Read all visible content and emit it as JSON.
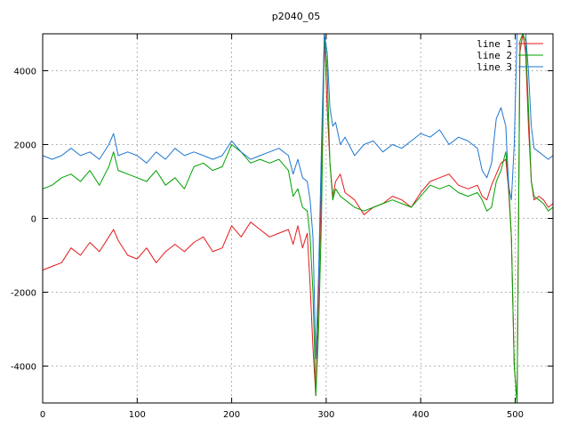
{
  "chart_data": {
    "type": "line",
    "title": "p2040_05",
    "xlabel": "",
    "ylabel": "",
    "xlim": [
      0,
      540
    ],
    "ylim": [
      -5000,
      5000
    ],
    "x_ticks": [
      0,
      100,
      200,
      300,
      400,
      500
    ],
    "y_ticks": [
      -4000,
      -2000,
      0,
      2000,
      4000
    ],
    "grid": true,
    "legend_position": "top-right",
    "x": [
      0,
      10,
      20,
      30,
      40,
      50,
      60,
      70,
      75,
      80,
      90,
      100,
      110,
      120,
      130,
      140,
      150,
      160,
      170,
      180,
      190,
      200,
      210,
      220,
      230,
      240,
      250,
      260,
      265,
      270,
      275,
      280,
      283,
      286,
      289,
      292,
      295,
      298,
      301,
      304,
      307,
      310,
      315,
      320,
      330,
      340,
      350,
      360,
      370,
      380,
      390,
      400,
      410,
      420,
      430,
      440,
      450,
      460,
      465,
      470,
      475,
      480,
      485,
      490,
      493,
      496,
      499,
      502,
      505,
      508,
      511,
      514,
      517,
      520,
      525,
      530,
      535,
      540
    ],
    "series": [
      {
        "name": "line 1",
        "color": "#e41a1c",
        "values": [
          -1400,
          -1300,
          -1200,
          -800,
          -1000,
          -650,
          -900,
          -500,
          -300,
          -600,
          -1000,
          -1100,
          -800,
          -1200,
          -900,
          -700,
          -900,
          -650,
          -500,
          -900,
          -800,
          -200,
          -500,
          -100,
          -300,
          -500,
          -400,
          -300,
          -700,
          -200,
          -800,
          -400,
          -1800,
          -3500,
          -4800,
          -2000,
          1000,
          5000,
          3000,
          1500,
          600,
          1000,
          1200,
          700,
          500,
          100,
          300,
          400,
          600,
          500,
          300,
          700,
          1000,
          1100,
          1200,
          900,
          800,
          900,
          600,
          500,
          900,
          1200,
          1500,
          1600,
          800,
          -500,
          -4000,
          -5000,
          4500,
          5000,
          4500,
          2500,
          1000,
          500,
          600,
          500,
          300,
          400
        ]
      },
      {
        "name": "line 2",
        "color": "#00a000",
        "values": [
          800,
          900,
          1100,
          1200,
          1000,
          1300,
          900,
          1400,
          1800,
          1300,
          1200,
          1100,
          1000,
          1300,
          900,
          1100,
          800,
          1400,
          1500,
          1300,
          1400,
          2000,
          1800,
          1500,
          1600,
          1500,
          1600,
          1300,
          600,
          800,
          300,
          200,
          -500,
          -2000,
          -4800,
          -3000,
          0,
          5000,
          4000,
          1500,
          500,
          800,
          600,
          500,
          300,
          200,
          300,
          400,
          500,
          400,
          300,
          600,
          900,
          800,
          900,
          700,
          600,
          700,
          500,
          200,
          300,
          1000,
          1300,
          1800,
          1000,
          -500,
          -4000,
          -5000,
          4800,
          5000,
          4800,
          3000,
          1000,
          600,
          500,
          400,
          200,
          300
        ]
      },
      {
        "name": "line 3",
        "color": "#1f77d0",
        "values": [
          1700,
          1600,
          1700,
          1900,
          1700,
          1800,
          1600,
          2000,
          2300,
          1700,
          1800,
          1700,
          1500,
          1800,
          1600,
          1900,
          1700,
          1800,
          1700,
          1600,
          1700,
          2100,
          1800,
          1600,
          1700,
          1800,
          1900,
          1700,
          1200,
          1600,
          1100,
          1000,
          500,
          -500,
          -3800,
          -1500,
          2000,
          5000,
          4500,
          3000,
          2500,
          2600,
          2000,
          2200,
          1700,
          2000,
          2100,
          1800,
          2000,
          1900,
          2100,
          2300,
          2200,
          2400,
          2000,
          2200,
          2100,
          1900,
          1300,
          1100,
          1500,
          2700,
          3000,
          2500,
          900,
          500,
          2000,
          5000,
          5000,
          5000,
          5000,
          4000,
          2500,
          1900,
          1800,
          1700,
          1600,
          1700
        ]
      }
    ]
  }
}
